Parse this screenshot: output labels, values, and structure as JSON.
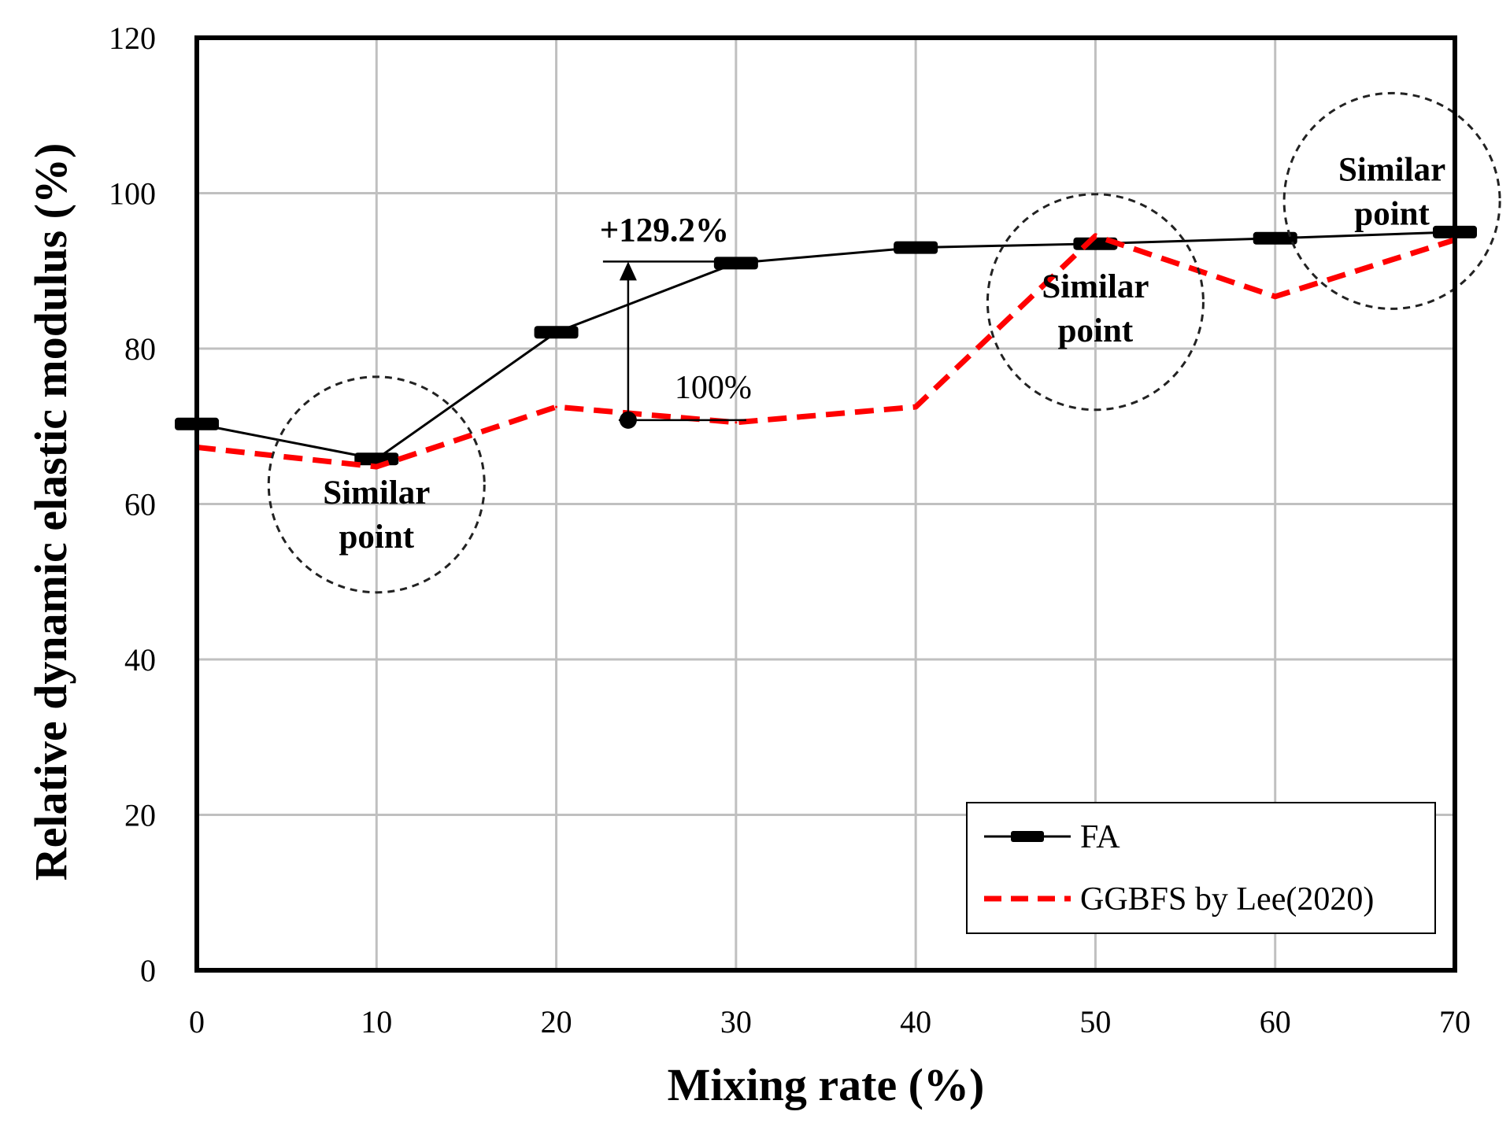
{
  "chart_data": {
    "type": "line",
    "xlabel": "Mixing rate (%)",
    "ylabel": "Relative dynamic elastic modulus (%)",
    "xlim": [
      0,
      70
    ],
    "ylim": [
      0,
      120
    ],
    "xticks": [
      "0",
      "10",
      "20",
      "30",
      "40",
      "50",
      "60",
      "70"
    ],
    "yticks": [
      "0",
      "20",
      "40",
      "60",
      "80",
      "100",
      "120"
    ],
    "grid": true,
    "legend_position": "bottom-right",
    "series": [
      {
        "name": "FA",
        "style": "solid-black-dash-markers",
        "color": "#000000",
        "x": [
          0,
          10,
          20,
          30,
          40,
          50,
          60,
          70
        ],
        "y": [
          70.3,
          65.8,
          82.1,
          91.0,
          93.0,
          93.5,
          94.2,
          95.0
        ]
      },
      {
        "name": "GGBFS by Lee(2020)",
        "style": "dashed-red",
        "color": "#ff0000",
        "x": [
          0,
          10,
          20,
          30,
          40,
          50,
          60,
          70
        ],
        "y": [
          67.3,
          64.8,
          72.5,
          70.5,
          72.5,
          94.5,
          86.7,
          94.0
        ]
      }
    ],
    "annotations": {
      "increase_label": "+129.2%",
      "base_label": "100%",
      "similar_point_line1": "Similar",
      "similar_point_line2": "point",
      "circles": [
        {
          "x": 10,
          "y": 62.5
        },
        {
          "x": 50,
          "y": 86
        },
        {
          "x": 66.5,
          "y": 99
        }
      ],
      "arrow": {
        "x": 24,
        "y_from": 70.8,
        "y_to": 91.2
      }
    }
  }
}
